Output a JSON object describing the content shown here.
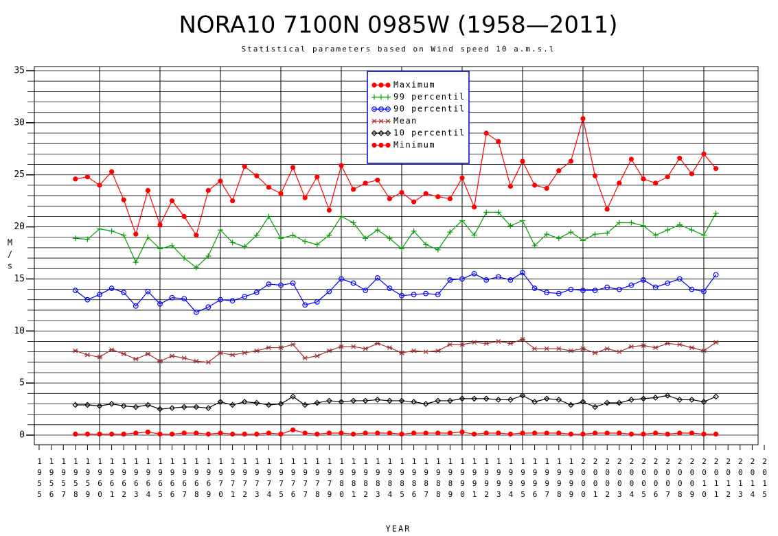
{
  "chart_data": {
    "type": "line",
    "title": "NORA10 7100N 0985W (1958—2011)",
    "subtitle": "Statistical parameters based on Wind speed 10 a.m.s.l",
    "y_label": "M/s",
    "x_label": "YEAR",
    "x": [
      1958,
      1959,
      1960,
      1961,
      1962,
      1963,
      1964,
      1965,
      1966,
      1967,
      1968,
      1969,
      1970,
      1971,
      1972,
      1973,
      1974,
      1975,
      1976,
      1977,
      1978,
      1979,
      1980,
      1981,
      1982,
      1983,
      1984,
      1985,
      1986,
      1987,
      1988,
      1989,
      1990,
      1991,
      1992,
      1993,
      1994,
      1995,
      1996,
      1997,
      1998,
      1999,
      2000,
      2001,
      2002,
      2003,
      2004,
      2005,
      2006,
      2007,
      2008,
      2009,
      2010,
      2011
    ],
    "xlim": [
      1955,
      2015
    ],
    "xticks": [
      1955,
      1956,
      1957,
      1958,
      1959,
      1960,
      1961,
      1962,
      1963,
      1964,
      1965,
      1966,
      1967,
      1968,
      1969,
      1970,
      1971,
      1972,
      1973,
      1974,
      1975,
      1976,
      1977,
      1978,
      1979,
      1980,
      1981,
      1982,
      1983,
      1984,
      1985,
      1986,
      1987,
      1988,
      1989,
      1990,
      1991,
      1992,
      1993,
      1994,
      1995,
      1996,
      1997,
      1998,
      1999,
      2000,
      2001,
      2002,
      2003,
      2004,
      2005,
      2006,
      2007,
      2008,
      2009,
      2010,
      2011,
      2012,
      2013,
      2014,
      2015
    ],
    "xgrid": [
      1960,
      1965,
      1970,
      1975,
      1980,
      1985,
      1990,
      1995,
      2000,
      2005,
      2010
    ],
    "ylim": [
      0,
      35
    ],
    "yticks": [
      0,
      5,
      10,
      15,
      20,
      25,
      30,
      35
    ],
    "ygrid": [
      0,
      1,
      2,
      3,
      4,
      5,
      6,
      7,
      8,
      9,
      10,
      11,
      12,
      13,
      14,
      15,
      16,
      17,
      18,
      19,
      20,
      21,
      22,
      23,
      24,
      25,
      26,
      27,
      28,
      29,
      30,
      31,
      32,
      33,
      34,
      35
    ],
    "grid": true,
    "legend": "top-center",
    "series": [
      {
        "name": "Maximum",
        "color": "#ff0000",
        "marker": "dot",
        "values": [
          24.6,
          24.8,
          24.0,
          25.3,
          22.6,
          19.3,
          23.5,
          20.2,
          22.5,
          21.0,
          19.2,
          23.5,
          24.4,
          22.5,
          25.8,
          24.9,
          23.8,
          23.2,
          25.7,
          22.8,
          24.8,
          21.6,
          25.9,
          23.6,
          24.2,
          24.5,
          22.7,
          23.3,
          22.4,
          23.2,
          22.9,
          22.7,
          24.7,
          21.9,
          29.0,
          28.2,
          23.9,
          26.3,
          24.0,
          23.7,
          25.4,
          26.3,
          30.4,
          24.9,
          21.7,
          24.2,
          26.5,
          24.6,
          24.2,
          24.8,
          26.6,
          25.1,
          27.0,
          25.6
        ]
      },
      {
        "name": "99 percentil",
        "color": "#00a000",
        "marker": "plus",
        "values": [
          18.9,
          18.8,
          19.8,
          19.6,
          19.2,
          16.6,
          19.0,
          17.9,
          18.2,
          17.0,
          16.1,
          17.2,
          19.7,
          18.5,
          18.1,
          19.2,
          21.0,
          18.9,
          19.2,
          18.6,
          18.3,
          19.2,
          21.0,
          20.4,
          18.9,
          19.7,
          18.9,
          17.9,
          19.6,
          18.3,
          17.8,
          19.5,
          20.6,
          19.2,
          21.4,
          21.4,
          20.1,
          20.6,
          18.2,
          19.3,
          18.9,
          19.5,
          18.7,
          19.3,
          19.4,
          20.4,
          20.4,
          20.1,
          19.2,
          19.7,
          20.2,
          19.7,
          19.2,
          21.3
        ]
      },
      {
        "name": "90 percentil",
        "color": "#0000ff",
        "marker": "circle",
        "values": [
          13.9,
          13.0,
          13.5,
          14.1,
          13.7,
          12.4,
          13.8,
          12.6,
          13.2,
          13.1,
          11.8,
          12.3,
          13.0,
          12.9,
          13.3,
          13.7,
          14.5,
          14.4,
          14.6,
          12.5,
          12.8,
          13.8,
          15.0,
          14.6,
          13.9,
          15.1,
          14.1,
          13.4,
          13.5,
          13.6,
          13.5,
          14.9,
          15.0,
          15.5,
          14.9,
          15.2,
          14.9,
          15.6,
          14.1,
          13.7,
          13.6,
          14.0,
          13.9,
          13.9,
          14.2,
          14.0,
          14.4,
          14.9,
          14.2,
          14.6,
          15.0,
          14.0,
          13.8,
          15.4
        ]
      },
      {
        "name": "Mean",
        "color": "#a03030",
        "marker": "star",
        "values": [
          8.1,
          7.7,
          7.5,
          8.2,
          7.8,
          7.3,
          7.8,
          7.1,
          7.6,
          7.4,
          7.1,
          7.0,
          7.9,
          7.7,
          7.9,
          8.1,
          8.4,
          8.4,
          8.7,
          7.4,
          7.6,
          8.1,
          8.5,
          8.5,
          8.3,
          8.8,
          8.4,
          7.9,
          8.1,
          8.0,
          8.1,
          8.7,
          8.7,
          8.9,
          8.8,
          9.0,
          8.8,
          9.2,
          8.3,
          8.3,
          8.3,
          8.1,
          8.3,
          7.9,
          8.3,
          8.0,
          8.5,
          8.6,
          8.4,
          8.8,
          8.7,
          8.4,
          8.1,
          8.9
        ]
      },
      {
        "name": "10 percentil",
        "color": "#000000",
        "marker": "diamond",
        "values": [
          2.9,
          2.9,
          2.8,
          3.0,
          2.8,
          2.7,
          2.9,
          2.5,
          2.6,
          2.7,
          2.7,
          2.6,
          3.2,
          2.9,
          3.2,
          3.1,
          2.9,
          3.0,
          3.7,
          2.9,
          3.1,
          3.3,
          3.2,
          3.3,
          3.3,
          3.4,
          3.3,
          3.3,
          3.2,
          3.0,
          3.3,
          3.3,
          3.5,
          3.5,
          3.5,
          3.4,
          3.4,
          3.8,
          3.2,
          3.5,
          3.4,
          2.9,
          3.2,
          2.7,
          3.1,
          3.1,
          3.4,
          3.5,
          3.6,
          3.8,
          3.4,
          3.4,
          3.2,
          3.7
        ]
      },
      {
        "name": "Minimum",
        "color": "#ff0000",
        "marker": "dot",
        "values": [
          0.1,
          0.1,
          0.1,
          0.1,
          0.1,
          0.2,
          0.3,
          0.1,
          0.1,
          0.2,
          0.2,
          0.1,
          0.2,
          0.1,
          0.1,
          0.1,
          0.2,
          0.1,
          0.5,
          0.2,
          0.1,
          0.2,
          0.2,
          0.1,
          0.2,
          0.2,
          0.2,
          0.1,
          0.2,
          0.2,
          0.2,
          0.2,
          0.3,
          0.1,
          0.2,
          0.2,
          0.1,
          0.2,
          0.2,
          0.2,
          0.2,
          0.1,
          0.1,
          0.2,
          0.2,
          0.2,
          0.1,
          0.1,
          0.2,
          0.1,
          0.2,
          0.2,
          0.1,
          0.1
        ]
      }
    ]
  }
}
